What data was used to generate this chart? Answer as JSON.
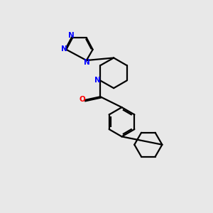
{
  "background_color": "#e8e8e8",
  "bond_color": "#000000",
  "N_color": "#0000ff",
  "O_color": "#ff0000",
  "line_width": 1.6,
  "figsize": [
    3.0,
    3.0
  ],
  "dpi": 100,
  "xlim": [
    -1.0,
    5.0
  ],
  "ylim": [
    -3.5,
    3.0
  ]
}
